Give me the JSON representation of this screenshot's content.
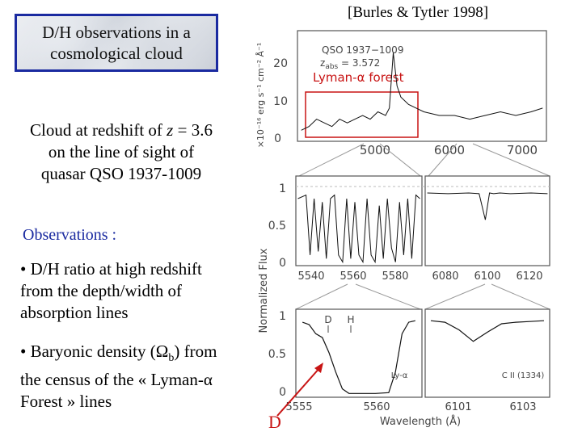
{
  "reference": "[Burles & Tytler 1998]",
  "title_box": {
    "line1": "D/H observations in a",
    "line2": "cosmological cloud"
  },
  "cloud": {
    "line1_prefix": "Cloud at redshift of ",
    "line1_var": "z",
    "line1_suffix": " = 3.6",
    "line2": "on the line of sight of",
    "line3": "quasar QSO 1937-1009"
  },
  "observations_title": "Observations :",
  "bullets": {
    "b1_line1": "• D/H ratio at high redshift",
    "b1_line2": "from the depth/width of",
    "b1_line3": "absorption lines",
    "b2_line1_a": "• Baryonic density (",
    "b2_line1_omega": "Ω",
    "b2_line1_sub": "b",
    "b2_line1_b": ") from",
    "b2_line2": "the census of the « Lyman-α",
    "b2_line3": "Forest » lines"
  },
  "arrow_label": "D",
  "colors": {
    "accent_blue": "#1a2aa0",
    "highlight_red": "#c81414"
  },
  "chart_data": [
    {
      "type": "line",
      "title": "",
      "inset_text": [
        "QSO 1937−1009",
        "z",
        "abs",
        " = 3.572"
      ],
      "annotation": "Lyman-α forest",
      "ylabel": "×10⁻¹⁶ erg s⁻¹ cm⁻² Å⁻¹",
      "x_ticks": [
        "5000",
        "6000",
        "7000"
      ],
      "y_ticks": [
        "0",
        "10",
        "20"
      ],
      "xlim": [
        4350,
        7600
      ],
      "ylim": [
        0,
        30
      ],
      "x": [
        4400,
        4500,
        4600,
        4700,
        4800,
        4900,
        5000,
        5100,
        5200,
        5300,
        5400,
        5500,
        5550,
        5600,
        5650,
        5700,
        5800,
        5900,
        6000,
        6200,
        6400,
        6600,
        6800,
        7000,
        7200,
        7400,
        7550
      ],
      "y": [
        3,
        4,
        6,
        5,
        4,
        6,
        5,
        6,
        7,
        6,
        8,
        7,
        9,
        24,
        15,
        12,
        10,
        9,
        8,
        7,
        7,
        6,
        7,
        8,
        7,
        8,
        9
      ]
    },
    {
      "type": "line",
      "ylabel": "Normalized Flux",
      "y_ticks": [
        "0",
        "0.5",
        "1"
      ],
      "x_ticks_left": [
        "5540",
        "5560",
        "5580"
      ],
      "x_ticks_right": [
        "6080",
        "6100",
        "6120"
      ],
      "left_x": [
        5528,
        5532,
        5534,
        5536,
        5538,
        5540,
        5542,
        5544,
        5546,
        5548,
        5550,
        5552,
        5554,
        5556,
        5558,
        5560,
        5562,
        5564,
        5566,
        5568,
        5570,
        5572,
        5574,
        5576,
        5578,
        5580,
        5582,
        5584,
        5586,
        5588
      ],
      "left_y": [
        0.9,
        0.95,
        0.1,
        0.9,
        0.15,
        0.85,
        0.05,
        0.9,
        0.95,
        0.1,
        0.0,
        0.9,
        0.05,
        0.85,
        0.1,
        0.0,
        0.9,
        0.1,
        0.0,
        0.8,
        0.05,
        0.9,
        0.2,
        0.0,
        0.85,
        0.1,
        0.9,
        0.05,
        0.95,
        0.9
      ],
      "right_x": [
        6070,
        6080,
        6090,
        6095,
        6098,
        6100,
        6102,
        6105,
        6110,
        6120,
        6128
      ],
      "right_y": [
        0.98,
        0.97,
        0.98,
        0.97,
        0.6,
        0.98,
        0.97,
        0.98,
        0.97,
        0.98,
        0.97
      ]
    },
    {
      "type": "line",
      "xlabel": "Wavelength (Å)",
      "y_ticks": [
        "0",
        "0.5",
        "1"
      ],
      "x_ticks_left": [
        "5555",
        "5560"
      ],
      "x_ticks_right": [
        "6101",
        "6103"
      ],
      "left_labels": [
        "D",
        "H",
        "Ly-α"
      ],
      "right_label": "C II (1334)",
      "left_x": [
        5553.5,
        5554,
        5554.5,
        5555,
        5555.5,
        5556,
        5556.5,
        5557,
        5558,
        5559,
        5560,
        5560.5,
        5561,
        5561.5,
        5562
      ],
      "left_y": [
        0.95,
        0.92,
        0.8,
        0.75,
        0.55,
        0.3,
        0.08,
        0.02,
        0.02,
        0.02,
        0.03,
        0.3,
        0.8,
        0.95,
        0.97
      ],
      "right_x": [
        6100,
        6100.5,
        6101,
        6101.5,
        6102,
        6102.5,
        6103,
        6103.5,
        6104
      ],
      "right_y": [
        0.97,
        0.95,
        0.85,
        0.7,
        0.82,
        0.93,
        0.95,
        0.96,
        0.97
      ]
    }
  ]
}
